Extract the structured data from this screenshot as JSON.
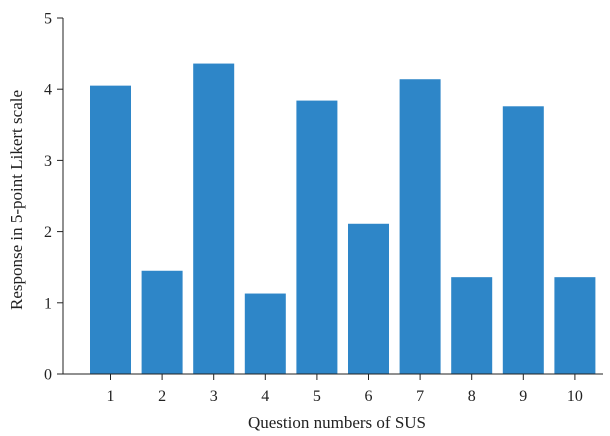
{
  "chart_data": {
    "type": "bar",
    "title": "",
    "xlabel": "Question numbers of SUS",
    "ylabel": "Response in 5-point Likert scale",
    "categories": [
      "1",
      "2",
      "3",
      "4",
      "5",
      "6",
      "7",
      "8",
      "9",
      "10"
    ],
    "values": [
      4.05,
      1.45,
      4.36,
      1.13,
      3.84,
      2.11,
      4.14,
      1.36,
      3.76,
      1.36
    ],
    "ylim": [
      0,
      5
    ],
    "yticks": [
      "0",
      "1",
      "2",
      "3",
      "4",
      "5"
    ],
    "grid": false,
    "legend": "none",
    "colors": {
      "bar": "#2e86c8",
      "axis": "#222222"
    }
  }
}
